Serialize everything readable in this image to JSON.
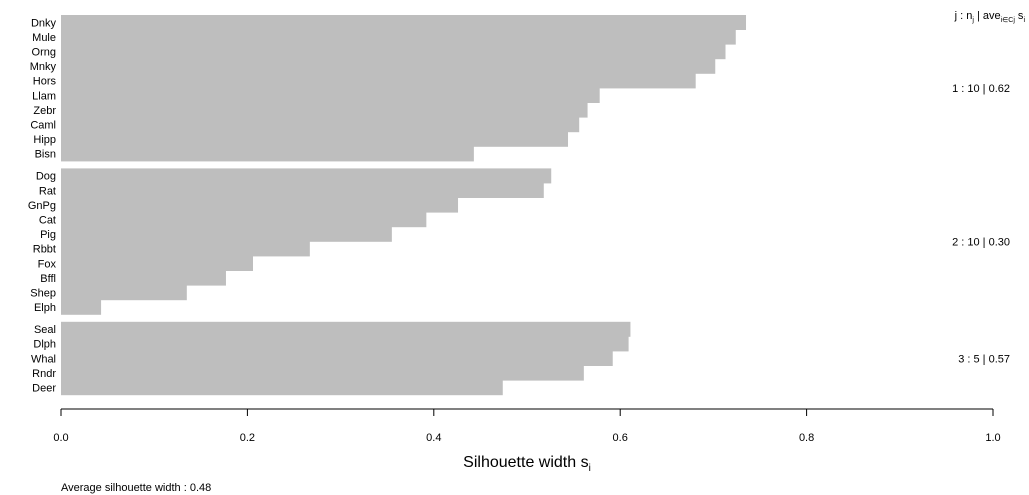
{
  "chart_data": {
    "type": "bar",
    "orientation": "horizontal",
    "title": "",
    "xlabel_main": "Silhouette width s",
    "xlabel_sub": "i",
    "xlim": [
      0,
      1
    ],
    "ticks": [
      "0.0",
      "0.2",
      "0.4",
      "0.6",
      "0.8",
      "1.0"
    ],
    "tick_values": [
      0.0,
      0.2,
      0.4,
      0.6,
      0.8,
      1.0
    ],
    "bar_color": "#bebebe",
    "grid": false,
    "header": {
      "j_label": "j :  n",
      "j_sub": "j",
      "mid": " | ave",
      "ave_sub": "i∈Cj",
      "s_label": "  s",
      "s_sub": "i"
    },
    "clusters": [
      {
        "label": "1 :  10  |  0.62",
        "items": [
          {
            "name": "Dnky",
            "value": 0.735
          },
          {
            "name": "Mule",
            "value": 0.724
          },
          {
            "name": "Orng",
            "value": 0.713
          },
          {
            "name": "Mnky",
            "value": 0.702
          },
          {
            "name": "Hors",
            "value": 0.681
          },
          {
            "name": "Llam",
            "value": 0.578
          },
          {
            "name": "Zebr",
            "value": 0.565
          },
          {
            "name": "Caml",
            "value": 0.556
          },
          {
            "name": "Hipp",
            "value": 0.544
          },
          {
            "name": "Bisn",
            "value": 0.443
          }
        ]
      },
      {
        "label": "2 :  10  |  0.30",
        "items": [
          {
            "name": "Dog",
            "value": 0.526
          },
          {
            "name": "Rat",
            "value": 0.518
          },
          {
            "name": "GnPg",
            "value": 0.426
          },
          {
            "name": "Cat",
            "value": 0.392
          },
          {
            "name": "Pig",
            "value": 0.355
          },
          {
            "name": "Rbbt",
            "value": 0.267
          },
          {
            "name": "Fox",
            "value": 0.206
          },
          {
            "name": "Bffl",
            "value": 0.177
          },
          {
            "name": "Shep",
            "value": 0.135
          },
          {
            "name": "Elph",
            "value": 0.043
          }
        ]
      },
      {
        "label": "3 :  5  |  0.57",
        "items": [
          {
            "name": "Seal",
            "value": 0.611
          },
          {
            "name": "Dlph",
            "value": 0.609
          },
          {
            "name": "Whal",
            "value": 0.592
          },
          {
            "name": "Rndr",
            "value": 0.561
          },
          {
            "name": "Deer",
            "value": 0.474
          }
        ]
      }
    ],
    "footer": "Average silhouette width :  0.48"
  }
}
